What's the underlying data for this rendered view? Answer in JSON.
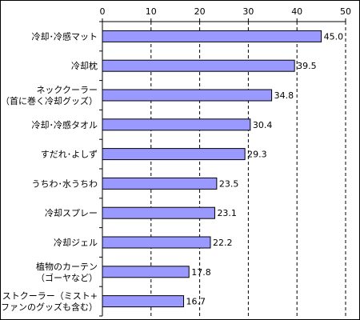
{
  "chart_data": {
    "type": "bar",
    "orientation": "horizontal",
    "categories": [
      [
        "冷却･冷感マット"
      ],
      [
        "冷却枕"
      ],
      [
        "ネッククーラー",
        "（首に巻く冷却グッズ）"
      ],
      [
        "冷却･冷感タオル"
      ],
      [
        "すだれ･よしず"
      ],
      [
        "うちわ･水うちわ"
      ],
      [
        "冷却スプレー"
      ],
      [
        "冷却ジェル"
      ],
      [
        "植物のカーテン",
        "（ゴーヤなど）"
      ],
      [
        "ミストクーラー（ミスト+",
        "ファンのグッズも含む）"
      ]
    ],
    "values": [
      45.0,
      39.5,
      34.8,
      30.4,
      29.3,
      23.5,
      23.1,
      22.2,
      17.8,
      16.7
    ],
    "value_labels": [
      "45.0",
      "39.5",
      "34.8",
      "30.4",
      "29.3",
      "23.5",
      "23.1",
      "22.2",
      "17.8",
      "16.7"
    ],
    "xticks": [
      "0",
      "10",
      "20",
      "30",
      "40",
      "50"
    ],
    "xlim": [
      0,
      50
    ],
    "axis_position": "top",
    "grid": "vertical-dashed",
    "bar_color": "#9999FF",
    "bar_border": "#000000"
  }
}
